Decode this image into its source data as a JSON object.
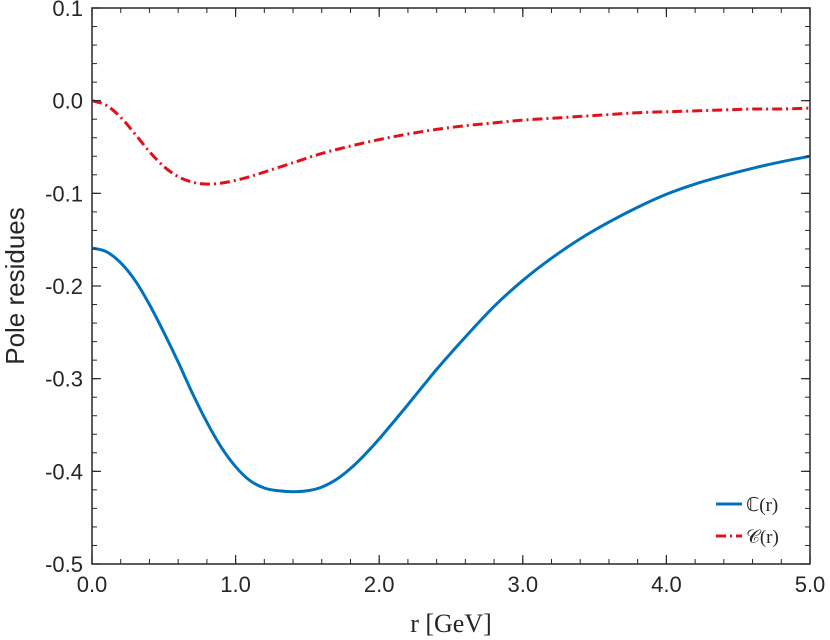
{
  "chart_data": {
    "type": "line",
    "xlabel": "r [GeV]",
    "ylabel": "Pole residues",
    "xlim": [
      0,
      5
    ],
    "ylim": [
      -0.5,
      0.1
    ],
    "xticks": [
      0,
      1,
      2,
      3,
      4,
      5
    ],
    "xtick_labels": [
      "0.0",
      "1.0",
      "2.0",
      "3.0",
      "4.0",
      "5.0"
    ],
    "yticks": [
      0.1,
      0.0,
      -0.1,
      -0.2,
      -0.3,
      -0.4,
      -0.5
    ],
    "ytick_labels": [
      "0.1",
      "0.0",
      "-0.1",
      "-0.2",
      "-0.3",
      "-0.4",
      "-0.5"
    ],
    "grid": false,
    "legend_position": "bottom-right",
    "series": [
      {
        "name": "ℂ(r)",
        "color": "#0072BD",
        "style": "solid",
        "x": [
          0.0,
          0.1,
          0.2,
          0.3,
          0.4,
          0.5,
          0.6,
          0.7,
          0.8,
          0.9,
          1.0,
          1.1,
          1.2,
          1.3,
          1.4,
          1.5,
          1.6,
          1.7,
          1.8,
          1.9,
          2.0,
          2.2,
          2.4,
          2.6,
          2.8,
          3.0,
          3.2,
          3.4,
          3.6,
          3.8,
          4.0,
          4.2,
          4.4,
          4.6,
          4.8,
          5.0
        ],
        "y": [
          -0.159,
          -0.163,
          -0.175,
          -0.194,
          -0.22,
          -0.25,
          -0.282,
          -0.316,
          -0.347,
          -0.374,
          -0.395,
          -0.41,
          -0.418,
          -0.421,
          -0.422,
          -0.421,
          -0.417,
          -0.409,
          -0.397,
          -0.382,
          -0.365,
          -0.328,
          -0.29,
          -0.255,
          -0.222,
          -0.194,
          -0.17,
          -0.149,
          -0.131,
          -0.115,
          -0.101,
          -0.09,
          -0.081,
          -0.073,
          -0.066,
          -0.06
        ]
      },
      {
        "name": "𝒞(r)",
        "color": "#E3101A",
        "style": "dashdot",
        "x": [
          0.0,
          0.1,
          0.2,
          0.3,
          0.4,
          0.5,
          0.6,
          0.7,
          0.8,
          0.9,
          1.0,
          1.1,
          1.2,
          1.4,
          1.6,
          1.8,
          2.0,
          2.2,
          2.4,
          2.6,
          2.8,
          3.0,
          3.2,
          3.4,
          3.6,
          3.8,
          4.0,
          4.2,
          4.4,
          4.6,
          4.8,
          5.0
        ],
        "y": [
          0.0,
          -0.005,
          -0.018,
          -0.036,
          -0.055,
          -0.071,
          -0.082,
          -0.088,
          -0.09,
          -0.089,
          -0.086,
          -0.082,
          -0.077,
          -0.067,
          -0.057,
          -0.049,
          -0.042,
          -0.036,
          -0.031,
          -0.027,
          -0.024,
          -0.021,
          -0.019,
          -0.017,
          -0.015,
          -0.013,
          -0.012,
          -0.011,
          -0.01,
          -0.009,
          -0.009,
          -0.008
        ]
      }
    ]
  }
}
